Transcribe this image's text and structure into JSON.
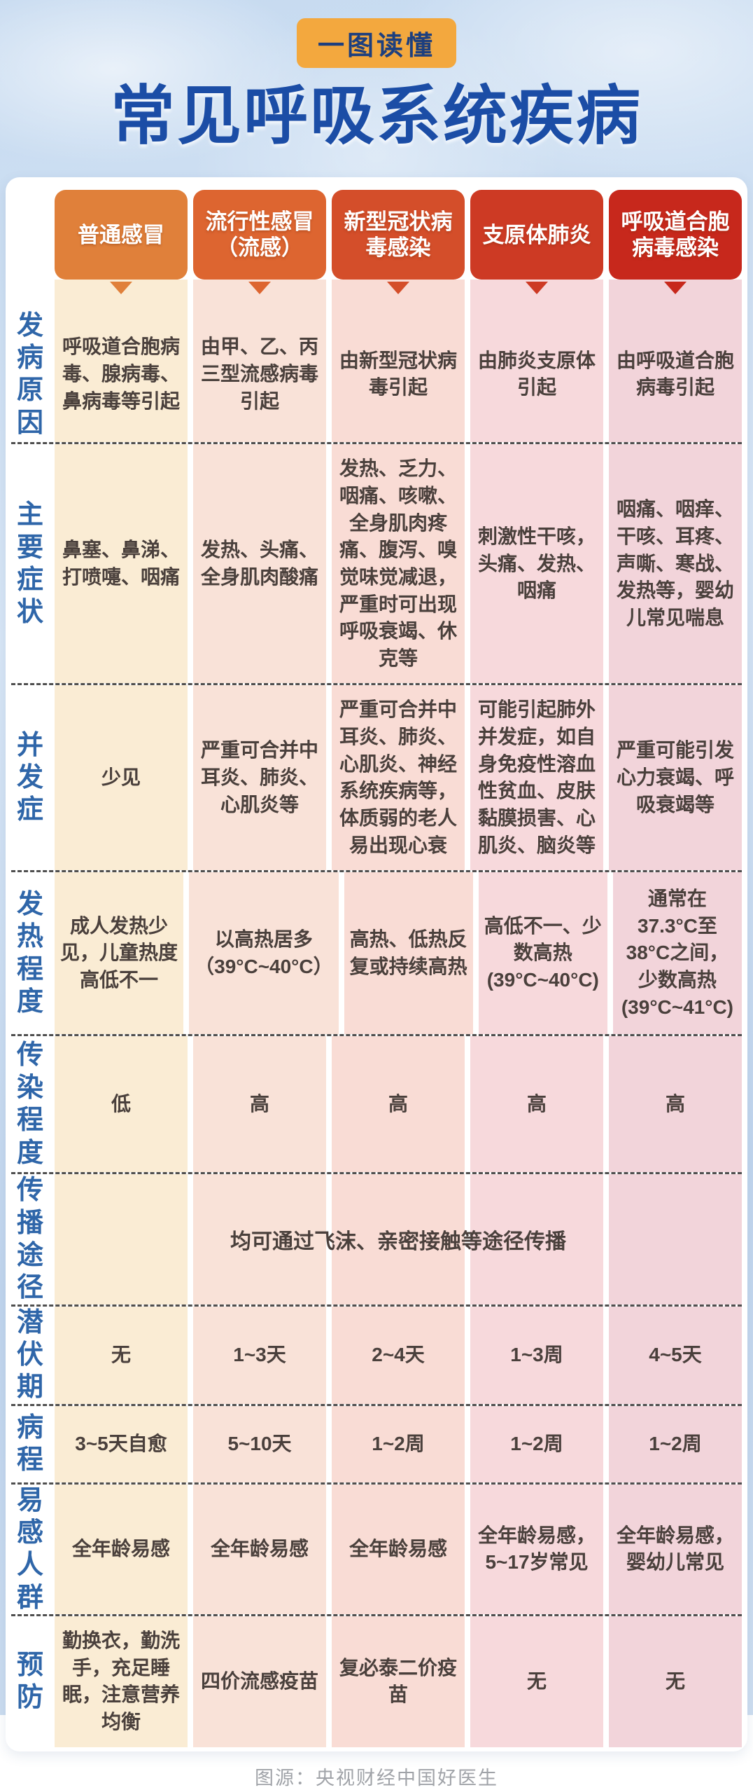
{
  "badge": {
    "label": "一图读懂"
  },
  "header": {
    "title": "常见呼吸系统疾病"
  },
  "colors": {
    "title_text": "#1b4da6",
    "badge_bg": "#f3a83e",
    "badge_text": "#1d3f7e",
    "row_label_text": "#2f66a9",
    "cell_text": "#4a403c",
    "dashed_line": "#4f4f4f",
    "background_blue": "#c6daf0"
  },
  "columns": [
    {
      "label": "普通感冒",
      "header_color": "#e0803a",
      "tint": "#faecd4"
    },
    {
      "label": "流行性感冒（流感）",
      "header_color": "#dd6530",
      "tint": "#f9e2d8"
    },
    {
      "label": "新型冠状病毒感染",
      "header_color": "#d44e2a",
      "tint": "#f9dcd5"
    },
    {
      "label": "支原体肺炎",
      "header_color": "#cd3a24",
      "tint": "#f7d9dc"
    },
    {
      "label": "呼吸道合胞病毒感染",
      "header_color": "#c7281c",
      "tint": "#f2d4da"
    }
  ],
  "rows": [
    {
      "label": "发病原因",
      "cells": [
        "呼吸道合胞病毒、腺病毒、鼻病毒等引起",
        "由甲、乙、丙三型流感病毒引起",
        "由新型冠状病毒引起",
        "由肺炎支原体引起",
        "由呼吸道合胞病毒引起"
      ]
    },
    {
      "label": "主要症状",
      "cells": [
        "鼻塞、鼻涕、打喷嚏、咽痛",
        "发热、头痛、全身肌肉酸痛",
        "发热、乏力、咽痛、咳嗽、全身肌肉疼痛、腹泻、嗅觉味觉减退，严重时可出现呼吸衰竭、休克等",
        "刺激性干咳，头痛、发热、咽痛",
        "咽痛、咽痒、干咳、耳疼、声嘶、寒战、发热等，婴幼儿常见喘息"
      ]
    },
    {
      "label": "并发症",
      "cells": [
        "少见",
        "严重可合并中耳炎、肺炎、心肌炎等",
        "严重可合并中耳炎、肺炎、心肌炎、神经系统疾病等，体质弱的老人易出现心衰",
        "可能引起肺外并发症，如自身免疫性溶血性贫血、皮肤黏膜损害、心肌炎、脑炎等",
        "严重可能引发心力衰竭、呼吸衰竭等"
      ]
    },
    {
      "label": "发热程度",
      "cells": [
        "成人发热少见，儿童热度高低不一",
        "以高热居多（39°C~40°C）",
        "高热、低热反复或持续高热",
        "高低不一、少数高热(39°C~40°C)",
        "通常在37.3°C至38°C之间，少数高热(39°C~41°C)"
      ]
    },
    {
      "label": "传染程度",
      "cells": [
        "低",
        "高",
        "高",
        "高",
        "高"
      ]
    },
    {
      "label": "传播途径",
      "merged": "均可通过飞沫、亲密接触等途径传播",
      "cells": [
        "",
        "",
        "",
        "",
        ""
      ]
    },
    {
      "label": "潜伏期",
      "cells": [
        "无",
        "1~3天",
        "2~4天",
        "1~3周",
        "4~5天"
      ]
    },
    {
      "label": "病程",
      "cells": [
        "3~5天自愈",
        "5~10天",
        "1~2周",
        "1~2周",
        "1~2周"
      ]
    },
    {
      "label": "易感人群",
      "cells": [
        "全年龄易感",
        "全年龄易感",
        "全年龄易感",
        "全年龄易感，5~17岁常见",
        "全年龄易感，婴幼儿常见"
      ]
    },
    {
      "label": "预防",
      "cells": [
        "勤换衣，勤洗手，充足睡眠，注意营养均衡",
        "四价流感疫苗",
        "复必泰二价疫苗",
        "无",
        "无"
      ]
    }
  ],
  "footer": {
    "source": "图源：央视财经中国好医生"
  }
}
